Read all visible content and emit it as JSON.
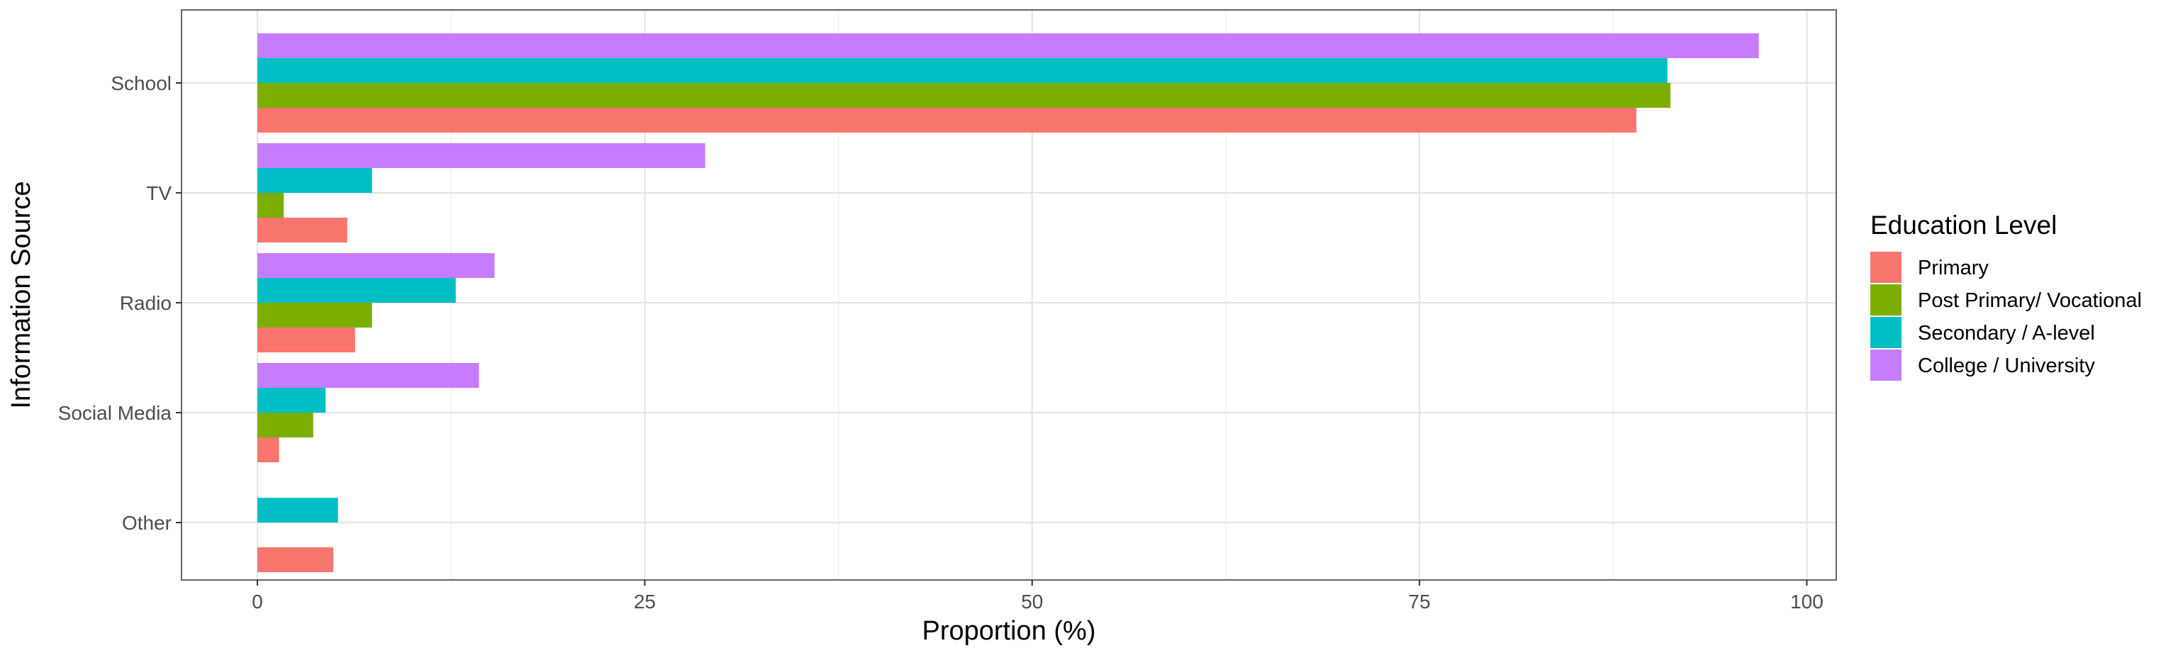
{
  "chart_data": {
    "type": "bar",
    "orientation": "horizontal",
    "categories": [
      "School",
      "TV",
      "Radio",
      "Social Media",
      "Other"
    ],
    "series": [
      {
        "name": "Primary",
        "color": "#F8766D",
        "values": [
          89,
          5.8,
          6.3,
          1.4,
          4.9
        ]
      },
      {
        "name": "Post Primary/ Vocational",
        "color": "#7CAE00",
        "values": [
          91.2,
          1.7,
          7.4,
          3.6,
          0
        ]
      },
      {
        "name": "Secondary / A-level",
        "color": "#00BFC4",
        "values": [
          91,
          7.4,
          12.8,
          4.4,
          5.2
        ]
      },
      {
        "name": "College / University",
        "color": "#C77CFF",
        "values": [
          96.9,
          28.9,
          15.3,
          14.3,
          0
        ]
      }
    ],
    "xlabel": "Proportion (%)",
    "ylabel": "Information Source",
    "xticks": [
      0,
      25,
      50,
      75,
      100
    ],
    "xlim": [
      -4.9,
      101.9
    ],
    "grid": true,
    "legend": {
      "title": "Education Level",
      "position": "right"
    }
  }
}
